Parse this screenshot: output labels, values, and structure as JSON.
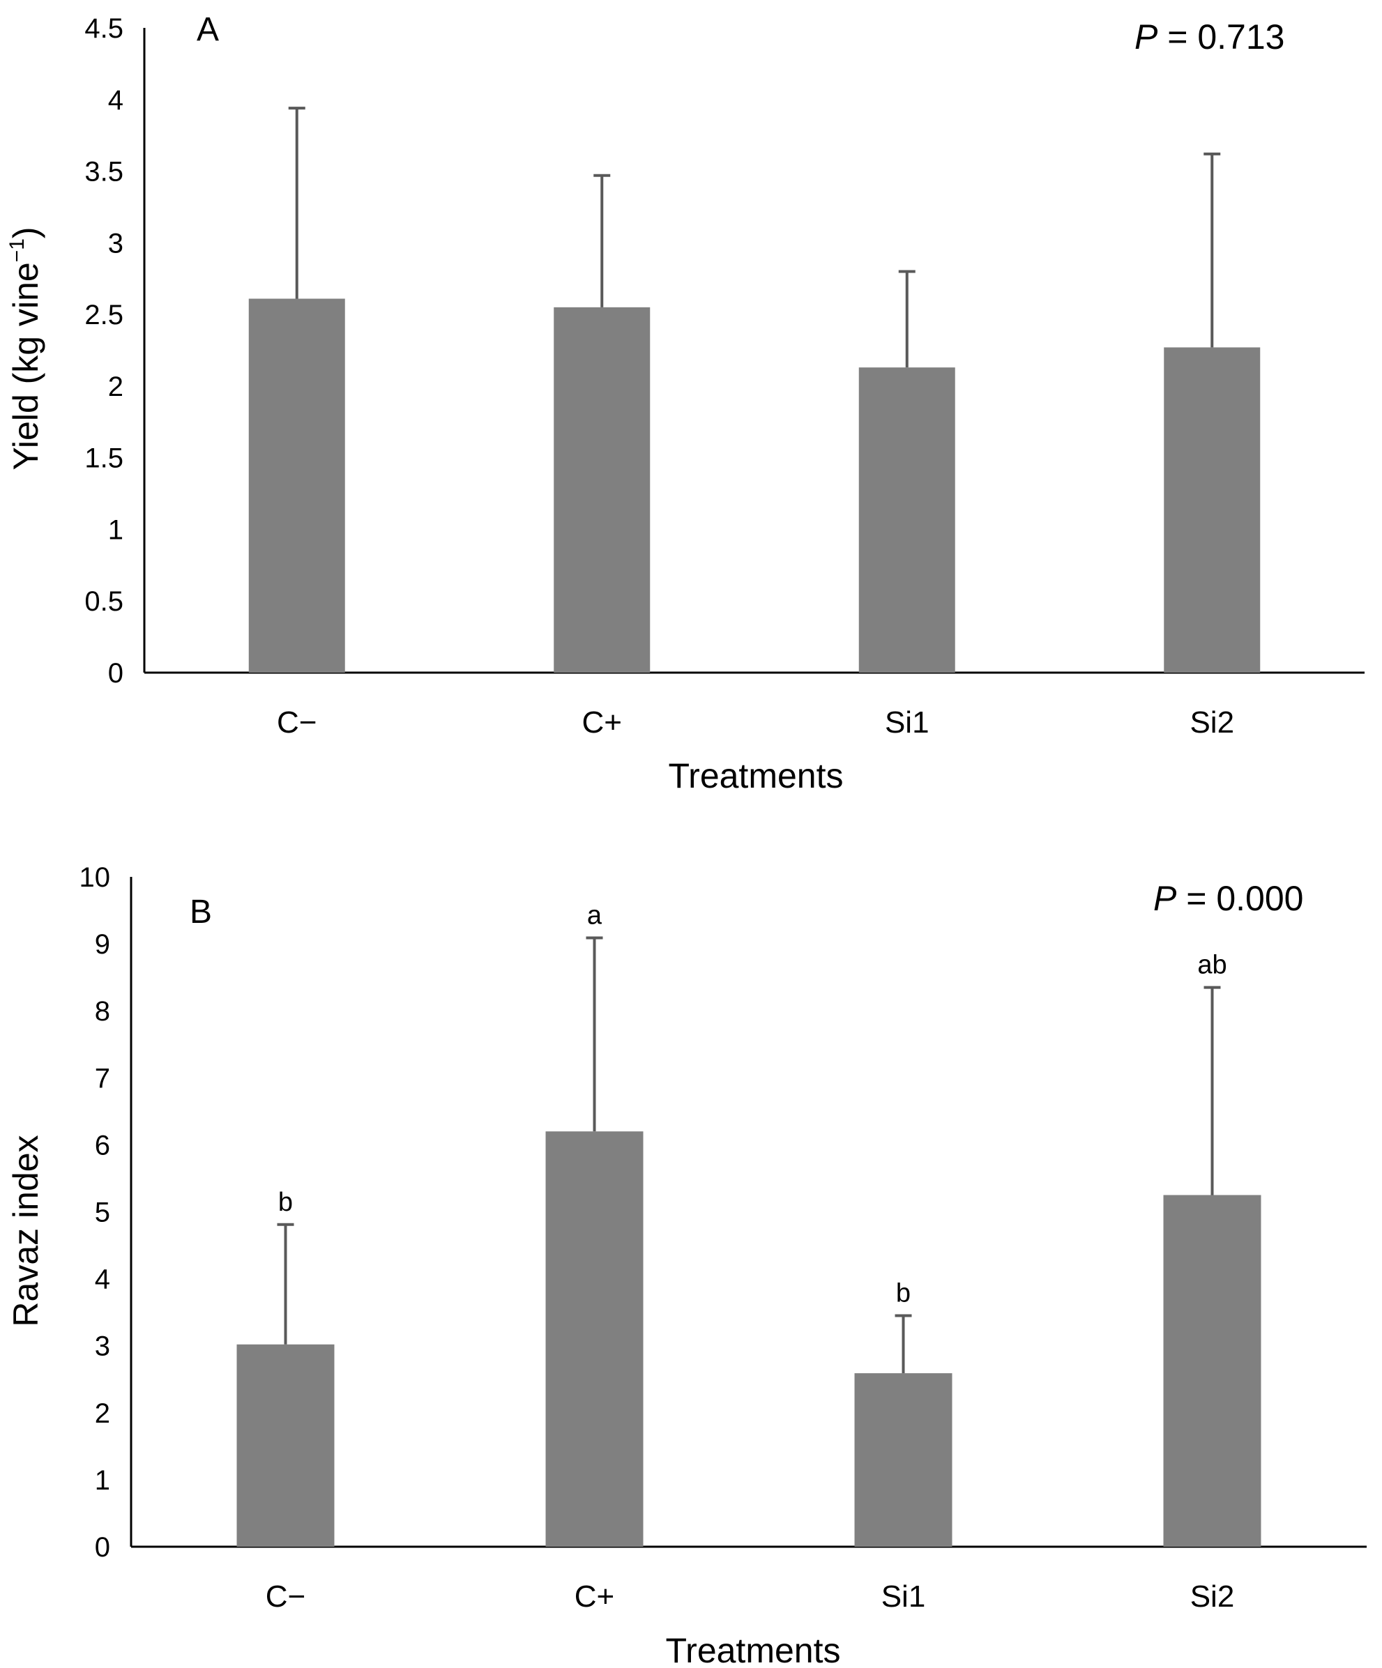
{
  "chart_data": [
    {
      "type": "bar",
      "panel_label": "A",
      "p_value_label": "P",
      "p_value_text": " = 0.713",
      "categories": [
        "C−",
        "C+",
        "Si1",
        "Si2"
      ],
      "values": [
        2.61,
        2.55,
        2.13,
        2.27
      ],
      "error_upper": [
        3.94,
        3.47,
        2.8,
        3.62
      ],
      "significance_letters": [
        "",
        "",
        "",
        ""
      ],
      "xlabel": "Treatments",
      "ylabel": "Yield (kg vine",
      "ylabel_superscript": "−1",
      "ylabel_suffix": ")",
      "ylim": [
        0,
        4.5
      ],
      "yticks": [
        "0",
        "0.5",
        "1",
        "1.5",
        "2",
        "2.5",
        "3",
        "3.5",
        "4",
        "4.5"
      ],
      "grid": false,
      "bar_color": "#808080",
      "error_color": "#595959"
    },
    {
      "type": "bar",
      "panel_label": "B",
      "p_value_label": "P",
      "p_value_text": " = 0.000",
      "categories": [
        "C−",
        "C+",
        "Si1",
        "Si2"
      ],
      "values": [
        3.02,
        6.2,
        2.59,
        5.25
      ],
      "error_upper": [
        4.81,
        9.09,
        3.45,
        8.35
      ],
      "significance_letters": [
        "b",
        "a",
        "b",
        "ab"
      ],
      "xlabel": "Treatments",
      "ylabel": "Ravaz index",
      "ylim": [
        0,
        10
      ],
      "yticks": [
        "0",
        "1",
        "2",
        "3",
        "4",
        "5",
        "6",
        "7",
        "8",
        "9",
        "10"
      ],
      "grid": false,
      "bar_color": "#808080",
      "error_color": "#595959"
    }
  ]
}
